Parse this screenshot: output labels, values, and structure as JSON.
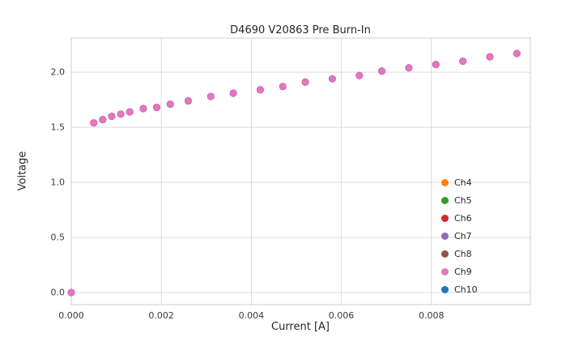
{
  "chart_data": {
    "type": "scatter",
    "title": "D4690 V20863 Pre Burn-In",
    "xlabel": "Current [A]",
    "ylabel": "Voltage",
    "xlim": [
      0,
      0.0102
    ],
    "ylim": [
      -0.11,
      2.31
    ],
    "x_ticks": [
      0.0,
      0.002,
      0.004,
      0.006,
      0.008
    ],
    "x_tick_labels": [
      "0.000",
      "0.002",
      "0.004",
      "0.006",
      "0.008"
    ],
    "y_ticks": [
      0.0,
      0.5,
      1.0,
      1.5,
      2.0
    ],
    "y_tick_labels": [
      "0.0",
      "0.5",
      "1.0",
      "1.5",
      "2.0"
    ],
    "grid": true,
    "legend_position": "lower right",
    "series": [
      {
        "name": "Ch4",
        "color": "#ff7f0e"
      },
      {
        "name": "Ch5",
        "color": "#2ca02c"
      },
      {
        "name": "Ch6",
        "color": "#d62728"
      },
      {
        "name": "Ch7",
        "color": "#9467bd"
      },
      {
        "name": "Ch8",
        "color": "#8c564b"
      },
      {
        "name": "Ch9",
        "color": "#e377c2"
      },
      {
        "name": "Ch10",
        "color": "#1f77b4"
      }
    ],
    "visible_points_series": "Ch9",
    "points": {
      "x": [
        0.0,
        0.0005,
        0.0007,
        0.0009,
        0.0011,
        0.0013,
        0.0016,
        0.0019,
        0.0022,
        0.0026,
        0.0031,
        0.0036,
        0.0042,
        0.0047,
        0.0052,
        0.0058,
        0.0064,
        0.0069,
        0.0075,
        0.0081,
        0.0087,
        0.0093,
        0.0099
      ],
      "y": [
        0.0,
        1.54,
        1.57,
        1.6,
        1.62,
        1.64,
        1.67,
        1.68,
        1.71,
        1.74,
        1.78,
        1.81,
        1.84,
        1.87,
        1.91,
        1.94,
        1.97,
        2.01,
        2.04,
        2.07,
        2.1,
        2.14,
        2.17
      ]
    },
    "marker_color": "#e377c2",
    "marker_edge_color": "#c95fa8",
    "grid_color": "#dcdcdc",
    "spine_color": "#cccccc"
  }
}
